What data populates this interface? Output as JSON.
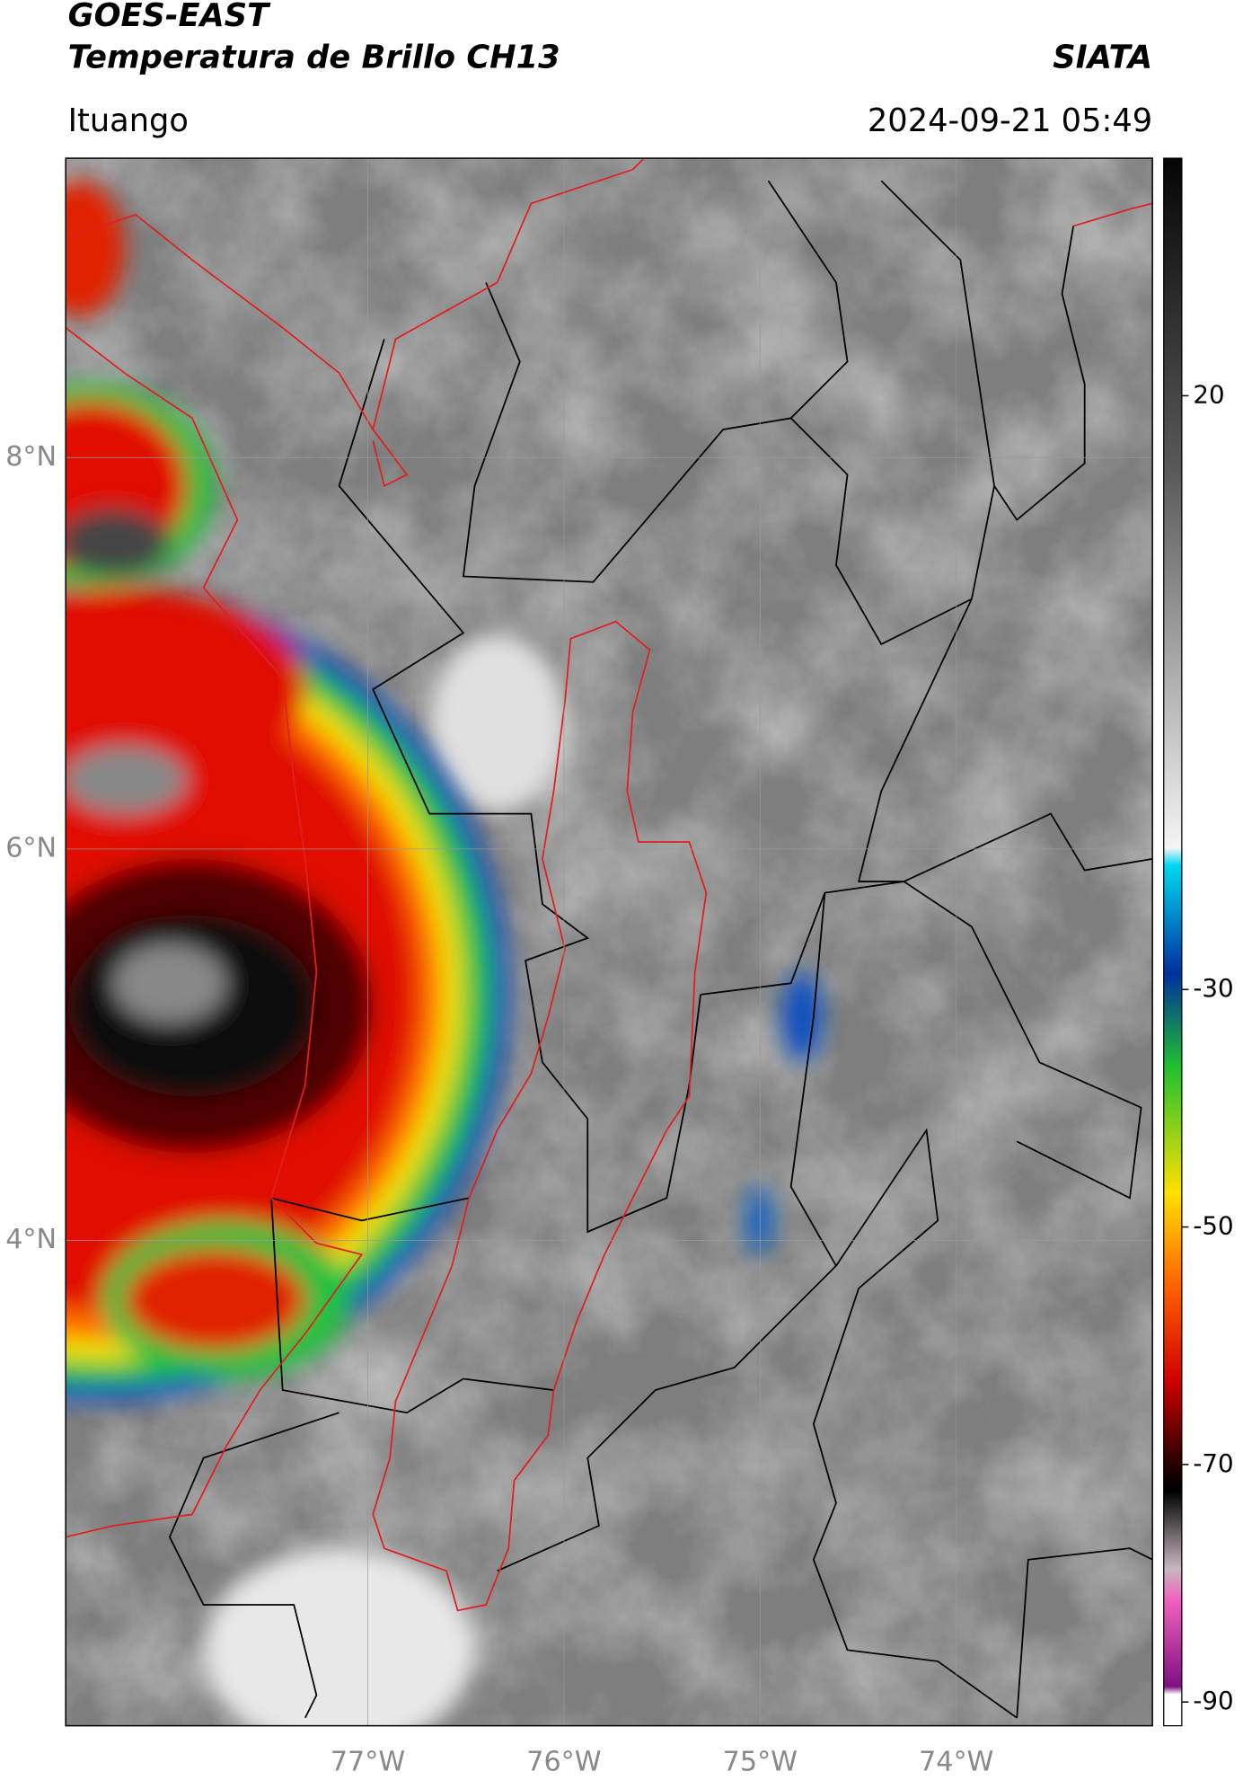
{
  "header": {
    "title_line1": "GOES-EAST",
    "title_line2": "Temperatura de Brillo CH13",
    "agency": "SIATA",
    "location": "Ituango",
    "timestamp": "2024-09-21 05:49"
  },
  "map": {
    "lonlim": [
      -78.54,
      -73.0
    ],
    "latlim": [
      1.52,
      9.53
    ],
    "grid": true,
    "lonticks": [
      {
        "value": -77,
        "label": "77°W"
      },
      {
        "value": -76,
        "label": "76°W"
      },
      {
        "value": -75,
        "label": "75°W"
      },
      {
        "value": -74,
        "label": "74°W"
      }
    ],
    "latticks": [
      {
        "value": 8,
        "label": "8°N"
      },
      {
        "value": 6,
        "label": "6°N"
      },
      {
        "value": 4,
        "label": "4°N"
      }
    ]
  },
  "colorbar": {
    "lim": [
      -92,
      40
    ],
    "ticks": [
      20,
      -30,
      -50,
      -70,
      -90
    ]
  }
}
